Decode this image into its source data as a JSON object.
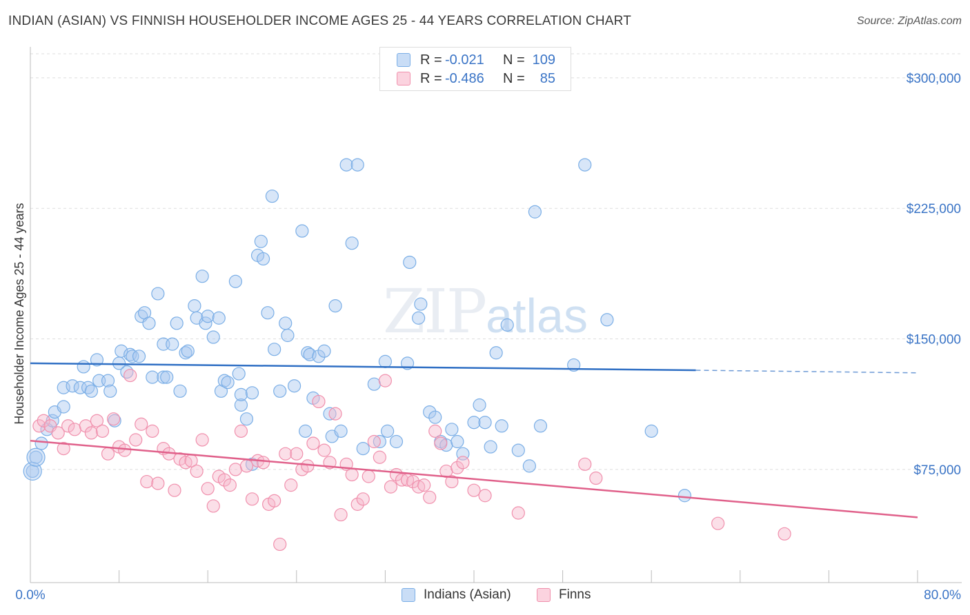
{
  "title": "INDIAN (ASIAN) VS FINNISH HOUSEHOLDER INCOME AGES 25 - 44 YEARS CORRELATION CHART",
  "source": "Source: ZipAtlas.com",
  "watermark": {
    "zip": "ZIP",
    "atlas": "atlas"
  },
  "legend": {
    "rows": [
      {
        "r_label": "R =",
        "r_value": "-0.021",
        "n_label": "N =",
        "n_value": "109",
        "color": "#a8c8ef"
      },
      {
        "r_label": "R =",
        "r_value": "-0.486",
        "n_label": "N =",
        "n_value": "85",
        "color": "#f6b8cb"
      }
    ]
  },
  "bottom_legend": [
    {
      "label": "Indians (Asian)",
      "color": "#a8c8ef"
    },
    {
      "label": "Finns",
      "color": "#f6b8cb"
    }
  ],
  "chart_data": {
    "type": "scatter",
    "title": "INDIAN (ASIAN) VS FINNISH HOUSEHOLDER INCOME AGES 25 - 44 YEARS CORRELATION CHART",
    "xlabel": "",
    "ylabel": "Householder Income Ages 25 - 44 years",
    "xlim": [
      0,
      80
    ],
    "ylim": [
      10000,
      315000
    ],
    "x_tick_labels": [
      "0.0%",
      "80.0%"
    ],
    "y_ticks": [
      75000,
      150000,
      225000,
      300000
    ],
    "y_tick_labels": [
      "$75,000",
      "$150,000",
      "$225,000",
      "$300,000"
    ],
    "grid": true,
    "legend_position": "top-center",
    "series": [
      {
        "name": "Indians (Asian)",
        "color": "#7aaee6",
        "trend": {
          "x0": 0,
          "y0": 136000,
          "x1": 60,
          "y1": 132000,
          "dashed_to_x": 80,
          "dashed_to_y": 130500,
          "color": "#2f6fc4"
        },
        "points": [
          [
            0.2,
            74
          ],
          [
            0.5,
            82
          ],
          [
            1,
            90
          ],
          [
            1.5,
            98
          ],
          [
            2,
            103
          ],
          [
            2.2,
            108
          ],
          [
            3,
            111
          ],
          [
            3,
            122
          ],
          [
            3.8,
            123
          ],
          [
            4.5,
            122
          ],
          [
            4.8,
            134
          ],
          [
            5.2,
            122
          ],
          [
            5.5,
            120
          ],
          [
            6,
            138
          ],
          [
            6.2,
            126
          ],
          [
            7,
            126
          ],
          [
            7.2,
            120
          ],
          [
            7.6,
            103
          ],
          [
            8,
            136
          ],
          [
            8.2,
            143
          ],
          [
            8.7,
            131
          ],
          [
            9,
            141
          ],
          [
            9.2,
            140
          ],
          [
            9.8,
            140
          ],
          [
            10,
            163
          ],
          [
            10.3,
            165
          ],
          [
            10.7,
            159
          ],
          [
            11,
            128
          ],
          [
            11.5,
            176
          ],
          [
            12,
            147
          ],
          [
            12,
            128
          ],
          [
            12.3,
            128
          ],
          [
            12.8,
            147
          ],
          [
            13.2,
            159
          ],
          [
            13.5,
            120
          ],
          [
            14,
            142
          ],
          [
            14.2,
            143
          ],
          [
            14.8,
            169
          ],
          [
            15,
            162
          ],
          [
            15.5,
            186
          ],
          [
            15.8,
            159
          ],
          [
            16,
            163
          ],
          [
            16.5,
            151
          ],
          [
            17,
            162
          ],
          [
            17.2,
            120
          ],
          [
            17.5,
            126
          ],
          [
            17.8,
            125
          ],
          [
            18.5,
            183
          ],
          [
            18.8,
            130
          ],
          [
            19,
            112
          ],
          [
            19,
            118
          ],
          [
            19.5,
            104
          ],
          [
            20,
            119
          ],
          [
            20,
            78
          ],
          [
            20.5,
            198
          ],
          [
            20.8,
            206
          ],
          [
            21,
            196
          ],
          [
            21.4,
            165
          ],
          [
            21.8,
            232
          ],
          [
            22,
            144
          ],
          [
            22.5,
            120
          ],
          [
            23,
            159
          ],
          [
            23.2,
            152
          ],
          [
            23.8,
            123
          ],
          [
            24.5,
            212
          ],
          [
            24.8,
            97
          ],
          [
            25,
            142
          ],
          [
            25.2,
            141
          ],
          [
            25.5,
            116
          ],
          [
            26,
            140
          ],
          [
            26.5,
            143
          ],
          [
            27,
            107
          ],
          [
            27.2,
            94
          ],
          [
            27.5,
            169
          ],
          [
            28,
            97
          ],
          [
            28.5,
            250
          ],
          [
            29,
            205
          ],
          [
            29.5,
            250
          ],
          [
            30,
            87
          ],
          [
            31,
            124
          ],
          [
            31.5,
            91
          ],
          [
            32,
            137
          ],
          [
            32.2,
            97
          ],
          [
            33,
            91
          ],
          [
            34,
            136
          ],
          [
            34.2,
            194
          ],
          [
            35,
            162
          ],
          [
            35.2,
            170
          ],
          [
            36,
            108
          ],
          [
            36.5,
            105
          ],
          [
            37,
            91
          ],
          [
            37.5,
            89
          ],
          [
            38,
            98
          ],
          [
            38.5,
            91
          ],
          [
            39,
            84
          ],
          [
            40,
            102
          ],
          [
            40.5,
            112
          ],
          [
            41,
            102
          ],
          [
            41.5,
            88
          ],
          [
            42,
            142
          ],
          [
            42.5,
            100
          ],
          [
            43,
            158
          ],
          [
            44,
            86
          ],
          [
            45,
            77
          ],
          [
            45.5,
            223
          ],
          [
            46,
            100
          ],
          [
            49,
            135
          ],
          [
            50,
            250
          ],
          [
            52,
            161
          ],
          [
            56,
            97
          ],
          [
            59,
            60
          ]
        ]
      },
      {
        "name": "Finns",
        "color": "#f08fac",
        "trend": {
          "x0": 0,
          "y0": 91500,
          "x1": 80,
          "y1": 47500,
          "color": "#e0608a"
        },
        "points": [
          [
            0.8,
            100
          ],
          [
            1.2,
            103
          ],
          [
            1.8,
            100
          ],
          [
            2.5,
            96
          ],
          [
            3,
            87
          ],
          [
            3.4,
            100
          ],
          [
            4,
            98
          ],
          [
            5,
            100
          ],
          [
            5.5,
            96
          ],
          [
            6,
            103
          ],
          [
            6.5,
            97
          ],
          [
            7,
            84
          ],
          [
            7.5,
            104
          ],
          [
            8,
            88
          ],
          [
            8.5,
            86
          ],
          [
            9,
            129
          ],
          [
            9.5,
            92
          ],
          [
            10,
            101
          ],
          [
            10.5,
            68
          ],
          [
            11,
            97
          ],
          [
            11.5,
            67
          ],
          [
            12,
            87
          ],
          [
            12.5,
            84
          ],
          [
            13,
            63
          ],
          [
            13.5,
            81
          ],
          [
            14,
            79
          ],
          [
            14.5,
            80
          ],
          [
            15,
            74
          ],
          [
            15.5,
            92
          ],
          [
            16,
            64
          ],
          [
            16.5,
            54
          ],
          [
            17,
            71
          ],
          [
            17.5,
            69
          ],
          [
            18,
            66
          ],
          [
            18.5,
            75
          ],
          [
            19,
            97
          ],
          [
            19.5,
            77
          ],
          [
            20,
            58
          ],
          [
            20.5,
            80
          ],
          [
            21,
            79
          ],
          [
            21.5,
            55
          ],
          [
            22,
            57
          ],
          [
            22.5,
            32
          ],
          [
            23,
            84
          ],
          [
            23.5,
            66
          ],
          [
            24,
            84
          ],
          [
            24.5,
            75
          ],
          [
            25,
            77
          ],
          [
            25.5,
            90
          ],
          [
            26,
            114
          ],
          [
            26.5,
            86
          ],
          [
            27,
            79
          ],
          [
            27.5,
            107
          ],
          [
            28,
            49
          ],
          [
            28.5,
            78
          ],
          [
            29,
            72
          ],
          [
            29.5,
            55
          ],
          [
            30,
            58
          ],
          [
            30.5,
            71
          ],
          [
            31,
            91
          ],
          [
            31.5,
            82
          ],
          [
            32,
            126
          ],
          [
            32.5,
            65
          ],
          [
            33,
            72
          ],
          [
            33.5,
            69
          ],
          [
            34,
            69
          ],
          [
            34.5,
            68
          ],
          [
            35,
            65
          ],
          [
            35.5,
            66
          ],
          [
            36,
            59
          ],
          [
            36.5,
            97
          ],
          [
            37,
            90
          ],
          [
            37.5,
            74
          ],
          [
            38,
            68
          ],
          [
            38.5,
            76
          ],
          [
            39,
            79
          ],
          [
            40,
            63
          ],
          [
            41,
            60
          ],
          [
            44,
            50
          ],
          [
            50,
            78
          ],
          [
            51,
            70
          ],
          [
            62,
            44
          ],
          [
            68,
            38
          ]
        ]
      }
    ]
  }
}
